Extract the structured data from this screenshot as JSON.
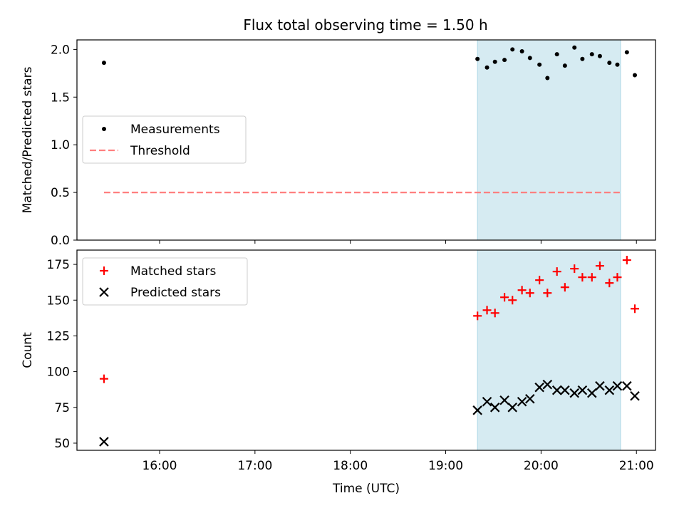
{
  "chart_data": [
    {
      "type": "scatter",
      "title": "Flux total observing time = 1.50 h",
      "ylabel": "Matched/Predicted stars",
      "ylim": [
        0,
        2.1
      ],
      "yticks": [
        "0.0",
        "0.5",
        "1.0",
        "1.5",
        "2.0"
      ],
      "ytick_values": [
        0,
        0.5,
        1.0,
        1.5,
        2.0
      ],
      "legend": {
        "placement": "center-left"
      },
      "shaded_span": {
        "start": "19:20",
        "end": "20:50",
        "color": "#add8e6"
      },
      "series": [
        {
          "name": "Measurements",
          "marker": "dot",
          "color": "#000000",
          "points": [
            [
              "15:25",
              1.86
            ],
            [
              "19:20",
              1.9
            ],
            [
              "19:26",
              1.81
            ],
            [
              "19:31",
              1.87
            ],
            [
              "19:37",
              1.89
            ],
            [
              "19:42",
              2.0
            ],
            [
              "19:48",
              1.98
            ],
            [
              "19:53",
              1.91
            ],
            [
              "19:59",
              1.84
            ],
            [
              "20:04",
              1.7
            ],
            [
              "20:10",
              1.95
            ],
            [
              "20:15",
              1.83
            ],
            [
              "20:21",
              2.02
            ],
            [
              "20:26",
              1.9
            ],
            [
              "20:32",
              1.95
            ],
            [
              "20:37",
              1.93
            ],
            [
              "20:43",
              1.86
            ],
            [
              "20:48",
              1.84
            ],
            [
              "20:54",
              1.97
            ],
            [
              "20:59",
              1.73
            ]
          ]
        },
        {
          "name": "Threshold",
          "marker": "dashed-line",
          "color": "#ff7f7f",
          "points": [
            [
              "15:25",
              0.5
            ],
            [
              "20:50",
              0.5
            ]
          ]
        }
      ]
    },
    {
      "type": "scatter",
      "xlabel": "Time (UTC)",
      "ylabel": "Count",
      "ylim": [
        45,
        185
      ],
      "yticks": [
        "50",
        "75",
        "100",
        "125",
        "150",
        "175"
      ],
      "ytick_values": [
        50,
        75,
        100,
        125,
        150,
        175
      ],
      "xticks": [
        "16:00",
        "17:00",
        "18:00",
        "19:00",
        "20:00",
        "21:00"
      ],
      "legend": {
        "placement": "top-left"
      },
      "shaded_span": {
        "start": "19:20",
        "end": "20:50",
        "color": "#add8e6"
      },
      "series": [
        {
          "name": "Matched stars",
          "marker": "plus",
          "color": "#ff0000",
          "points": [
            [
              "15:25",
              95
            ],
            [
              "19:20",
              139
            ],
            [
              "19:26",
              143
            ],
            [
              "19:31",
              141
            ],
            [
              "19:37",
              152
            ],
            [
              "19:42",
              150
            ],
            [
              "19:48",
              157
            ],
            [
              "19:53",
              155
            ],
            [
              "19:59",
              164
            ],
            [
              "20:04",
              155
            ],
            [
              "20:10",
              170
            ],
            [
              "20:15",
              159
            ],
            [
              "20:21",
              172
            ],
            [
              "20:26",
              166
            ],
            [
              "20:32",
              166
            ],
            [
              "20:37",
              174
            ],
            [
              "20:43",
              162
            ],
            [
              "20:48",
              166
            ],
            [
              "20:54",
              178
            ],
            [
              "20:59",
              144
            ]
          ]
        },
        {
          "name": "Predicted stars",
          "marker": "x",
          "color": "#000000",
          "points": [
            [
              "15:25",
              51
            ],
            [
              "19:20",
              73
            ],
            [
              "19:26",
              79
            ],
            [
              "19:31",
              75
            ],
            [
              "19:37",
              80
            ],
            [
              "19:42",
              75
            ],
            [
              "19:48",
              79
            ],
            [
              "19:53",
              81
            ],
            [
              "19:59",
              89
            ],
            [
              "20:04",
              91
            ],
            [
              "20:10",
              87
            ],
            [
              "20:15",
              87
            ],
            [
              "20:21",
              85
            ],
            [
              "20:26",
              87
            ],
            [
              "20:32",
              85
            ],
            [
              "20:37",
              90
            ],
            [
              "20:43",
              87
            ],
            [
              "20:48",
              90
            ],
            [
              "20:54",
              90
            ],
            [
              "20:59",
              83
            ]
          ]
        }
      ]
    }
  ]
}
